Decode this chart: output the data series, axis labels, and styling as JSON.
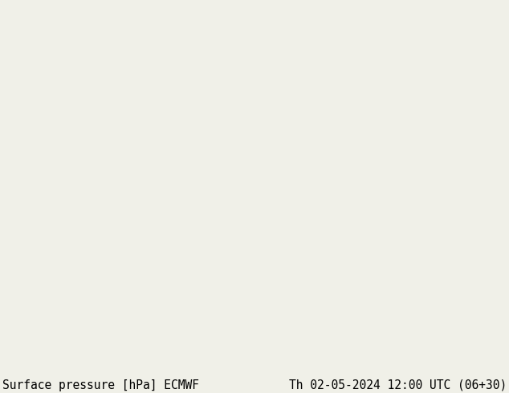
{
  "title_left": "Surface pressure [hPa] ECMWF",
  "title_right": "Th 02-05-2024 12:00 UTC (06+30)",
  "font_family": "monospace",
  "font_size_title": 10.5,
  "fig_width": 6.34,
  "fig_height": 4.9,
  "dpi": 100,
  "lon_min": 20,
  "lon_max": 148,
  "lat_min": -12,
  "lat_max": 65,
  "ocean_color": "#b0cfe0",
  "land_colors": {
    "lowland": "#c8d4a8",
    "midland": "#d4c898",
    "highland": "#c8b882",
    "tibet_low": "#c89060",
    "tibet_high": "#c06030",
    "tibet_very_high": "#a03820"
  },
  "isobar_black_lw": 1.3,
  "isobar_blue_lw": 1.0,
  "isobar_red_lw": 1.0,
  "label_fontsize": 5.5
}
